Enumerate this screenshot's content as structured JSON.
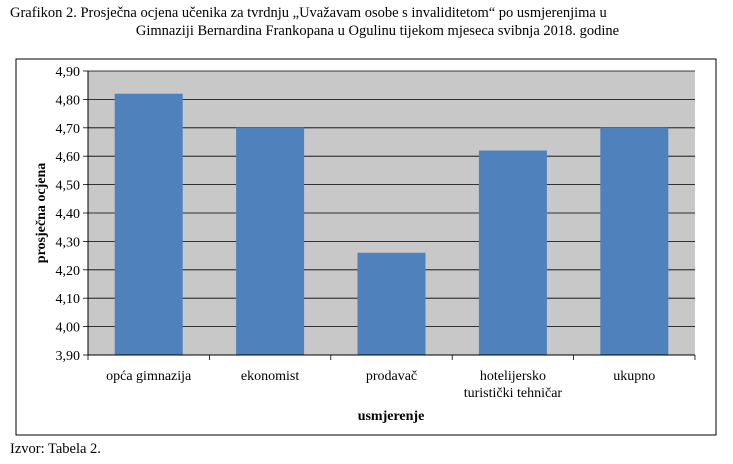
{
  "caption": {
    "line1": "Grafikon 2. Prosječna ocjena učenika za tvrdnju „Uvažavam osobe s invaliditetom“ po usmjerenjima u",
    "line2": "Gimnaziji Bernardina Frankopana u Ogulinu tijekom mjeseca svibnja 2018. godine"
  },
  "source": "Izvor: Tabela 2.",
  "chart_data": {
    "type": "bar",
    "categories": [
      [
        "opća gimnazija"
      ],
      [
        "ekonomist"
      ],
      [
        "prodavač"
      ],
      [
        "hotelijersko",
        "turistički tehničar"
      ],
      [
        "ukupno"
      ]
    ],
    "values": [
      4.82,
      4.7,
      4.26,
      4.62,
      4.7
    ],
    "xlabel": "usmjerenje",
    "ylabel": "prosječna ocjena",
    "ylim": [
      3.9,
      4.9
    ],
    "yticks": [
      "3,90",
      "4,00",
      "4,10",
      "4,20",
      "4,30",
      "4,40",
      "4,50",
      "4,60",
      "4,70",
      "4,80",
      "4,90"
    ],
    "grid": true,
    "bar_color": "#4f81bd",
    "legend": "none"
  }
}
